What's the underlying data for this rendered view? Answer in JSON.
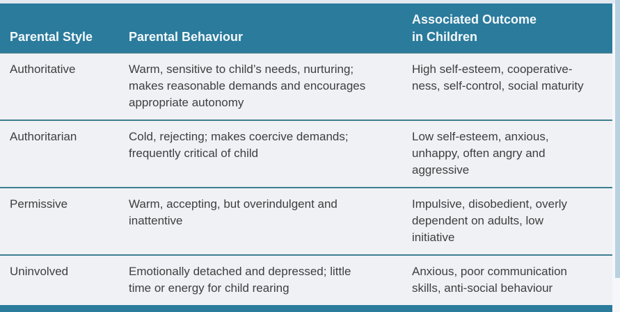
{
  "table": {
    "header": {
      "col1": [
        "Parental Style"
      ],
      "col2": [
        "Parental Behaviour"
      ],
      "col3": [
        "Associated Outcome",
        "in Children"
      ]
    },
    "rows": [
      {
        "style": "Authoritative",
        "behaviour": [
          "Warm, sensitive to child’s needs, nurturing;",
          "makes reasonable demands and encourages",
          "appropriate autonomy"
        ],
        "outcome": [
          "High self-esteem, cooperative-",
          "ness, self-control, social maturity"
        ]
      },
      {
        "style": "Authoritarian",
        "behaviour": [
          "Cold, rejecting; makes coercive demands;",
          "frequently critical of child"
        ],
        "outcome": [
          "Low self-esteem, anxious,",
          "unhappy, often angry and",
          "aggressive"
        ]
      },
      {
        "style": "Permissive",
        "behaviour": [
          "Warm, accepting, but overindulgent and",
          "inattentive"
        ],
        "outcome": [
          "Impulsive, disobedient, overly",
          "dependent on adults, low",
          "initiative"
        ]
      },
      {
        "style": "Uninvolved",
        "behaviour": [
          "Emotionally detached and depressed; little",
          "time or energy for child rearing"
        ],
        "outcome": [
          "Anxious, poor communication",
          "skills, anti-social behaviour"
        ]
      }
    ]
  },
  "colors": {
    "header_bg": "#2a7b9c",
    "row_bg": "#f0f1f4",
    "separator": "#3c7e90",
    "body_text": "#3e3e40",
    "header_text": "#f4f8fa",
    "right_strip": "#b9d2e1",
    "top_strip": "#e3e9f1"
  }
}
